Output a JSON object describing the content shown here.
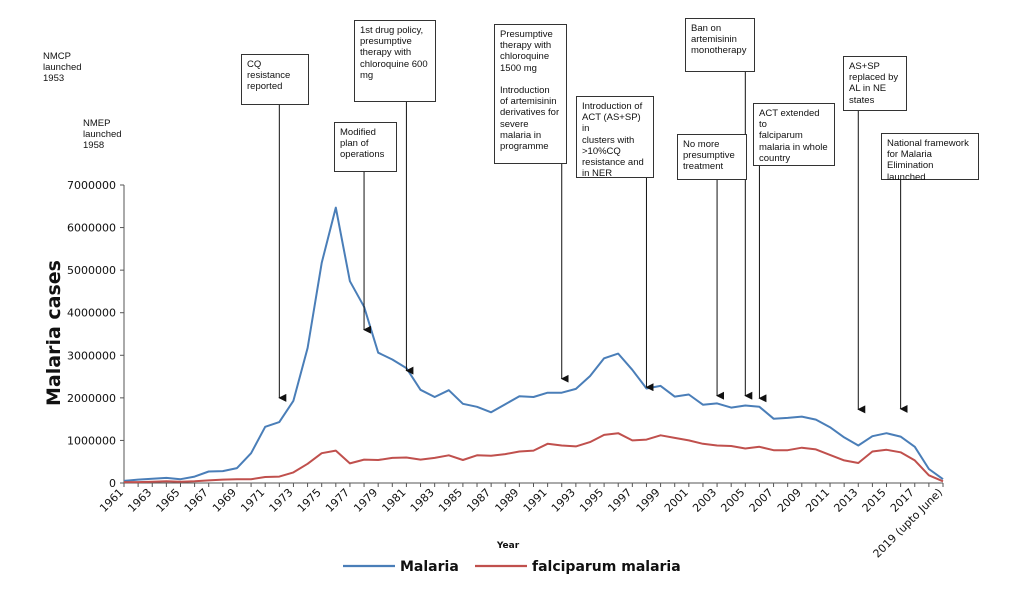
{
  "chart_data": {
    "type": "line",
    "xlabel": "Year",
    "ylabel": "Malaria cases",
    "ylim": [
      0,
      7000000
    ],
    "yticks": [
      "0",
      "1000000",
      "2000000",
      "3000000",
      "4000000",
      "5000000",
      "6000000",
      "7000000"
    ],
    "xticks": [
      "1961",
      "1963",
      "1965",
      "1967",
      "1969",
      "1971",
      "1973",
      "1975",
      "1977",
      "1979",
      "1981",
      "1983",
      "1985",
      "1987",
      "1989",
      "1991",
      "1993",
      "1995",
      "1997",
      "1999",
      "2001",
      "2003",
      "2005",
      "2007",
      "2009",
      "2011",
      "2013",
      "2015",
      "2017",
      "2019 (upto June)"
    ],
    "x": [
      "1961",
      "1962",
      "1963",
      "1964",
      "1965",
      "1966",
      "1967",
      "1968",
      "1969",
      "1970",
      "1971",
      "1972",
      "1973",
      "1974",
      "1975",
      "1976",
      "1977",
      "1978",
      "1979",
      "1980",
      "1981",
      "1982",
      "1983",
      "1984",
      "1985",
      "1986",
      "1987",
      "1988",
      "1989",
      "1990",
      "1991",
      "1992",
      "1993",
      "1994",
      "1995",
      "1996",
      "1997",
      "1998",
      "1999",
      "2000",
      "2001",
      "2002",
      "2003",
      "2004",
      "2005",
      "2006",
      "2007",
      "2008",
      "2009",
      "2010",
      "2011",
      "2012",
      "2013",
      "2014",
      "2015",
      "2016",
      "2017",
      "2018",
      "2019 (upto June)"
    ],
    "series": [
      {
        "name": "Malaria",
        "color": "#4a7eb8",
        "values": [
          50000,
          80000,
          100000,
          120000,
          90000,
          150000,
          270000,
          280000,
          350000,
          700000,
          1320000,
          1430000,
          1930000,
          3170000,
          5170000,
          6470000,
          4740000,
          4140000,
          3060000,
          2900000,
          2700000,
          2190000,
          2020000,
          2180000,
          1860000,
          1790000,
          1660000,
          1850000,
          2040000,
          2020000,
          2120000,
          2120000,
          2210000,
          2510000,
          2930000,
          3040000,
          2660000,
          2220000,
          2280000,
          2030000,
          2080000,
          1840000,
          1870000,
          1770000,
          1820000,
          1790000,
          1510000,
          1530000,
          1560000,
          1490000,
          1310000,
          1070000,
          880000,
          1100000,
          1170000,
          1090000,
          850000,
          330000,
          90000
        ]
      },
      {
        "name": "falciparum malaria",
        "color": "#c0504d",
        "values": [
          20000,
          20000,
          30000,
          40000,
          30000,
          40000,
          60000,
          80000,
          90000,
          90000,
          140000,
          150000,
          250000,
          450000,
          700000,
          760000,
          460000,
          550000,
          540000,
          590000,
          600000,
          550000,
          590000,
          650000,
          540000,
          650000,
          640000,
          680000,
          740000,
          760000,
          920000,
          880000,
          860000,
          960000,
          1130000,
          1170000,
          1000000,
          1020000,
          1120000,
          1060000,
          1000000,
          920000,
          880000,
          870000,
          810000,
          850000,
          770000,
          770000,
          830000,
          790000,
          660000,
          530000,
          470000,
          740000,
          780000,
          720000,
          530000,
          180000,
          40000
        ]
      }
    ],
    "legend": "bottom-center",
    "grid": false
  },
  "annotations": [
    {
      "id": "nmcp",
      "text": "NMCP\nlaunched\n1953"
    },
    {
      "id": "nmep",
      "text": "NMEP\nlaunched\n1958"
    },
    {
      "id": "cq-resistance",
      "text": "CQ\nresistance\nreported",
      "year": "1972",
      "target_value": 2000000
    },
    {
      "id": "modified-plan",
      "text": "Modified\nplan of\noperations",
      "year": "1978",
      "target_value": 3600000
    },
    {
      "id": "drug-policy",
      "text": "1st drug policy,\npresumptive\ntherapy with\nchloroquine 600\nmg",
      "year": "1981",
      "target_value": 2640000
    },
    {
      "id": "presumptive-1500",
      "text": "Presumptive\ntherapy with\nchloroquine\n1500 mg\n\nIntroduction\nof artemisinin\nderivatives for\nsevere\nmalaria in\nprogramme",
      "year": "1992",
      "target_value": 2450000
    },
    {
      "id": "act-introduction",
      "text": "Introduction of\nACT (AS+SP) in\nclusters with\n>10%CQ\nresistance and\nin NER",
      "year": "1998",
      "target_value": 2250000
    },
    {
      "id": "no-presumptive",
      "text": "No more\npresumptive\ntreatment",
      "year": "2003",
      "target_value": 2050000
    },
    {
      "id": "ban-monotherapy",
      "text": "Ban on\nartemisinin\nmonotherapy",
      "year": "2005",
      "target_value": 2050000
    },
    {
      "id": "act-extended",
      "text": "ACT extended to\nfalciparum\nmalaria in whole\ncountry",
      "year": "2006",
      "target_value": 1990000
    },
    {
      "id": "as-sp-replaced",
      "text": "AS+SP\nreplaced by\nAL in NE\nstates",
      "year": "2013",
      "target_value": 1730000
    },
    {
      "id": "national-framework",
      "text": "National framework\nfor Malaria\nElimination launched",
      "year": "2016",
      "target_value": 1740000
    }
  ]
}
